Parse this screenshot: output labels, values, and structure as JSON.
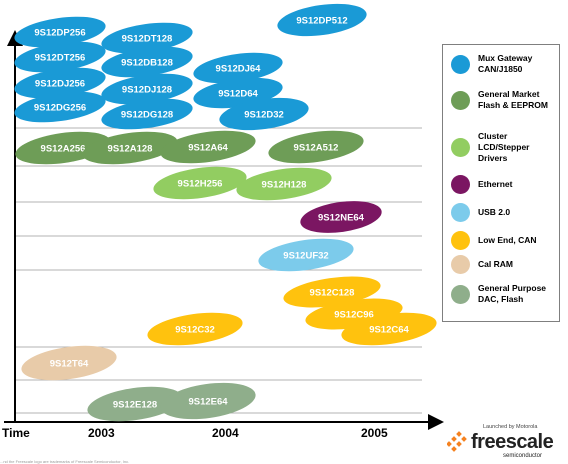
{
  "axis": {
    "time_label": "Time",
    "years": [
      {
        "label": "2003"
      },
      {
        "label": "2004"
      },
      {
        "label": "2005"
      }
    ]
  },
  "categories": [
    {
      "name": "Mux Gateway",
      "lines": [
        "Mux Gateway",
        "CAN/J1850"
      ],
      "color": "#1a9ad6"
    },
    {
      "name": "General Market",
      "lines": [
        "General Market",
        "Flash & EEPROM"
      ],
      "color": "#6e9d57"
    },
    {
      "name": "Cluster",
      "lines": [
        "Cluster",
        "LCD/Stepper",
        "Drivers"
      ],
      "color": "#92cd61"
    },
    {
      "name": "Ethernet",
      "lines": [
        "Ethernet"
      ],
      "color": "#7b1662"
    },
    {
      "name": "USB 2.0",
      "lines": [
        "USB 2.0"
      ],
      "color": "#7ccbeb"
    },
    {
      "name": "Low End, CAN",
      "lines": [
        "Low End, CAN"
      ],
      "color": "#ffc20e"
    },
    {
      "name": "Cal RAM",
      "lines": [
        "Cal RAM"
      ],
      "color": "#e8cba9"
    },
    {
      "name": "General Purpose",
      "lines": [
        "General Purpose",
        "DAC, Flash"
      ],
      "color": "#8fae8b"
    }
  ],
  "chips": [
    {
      "label": "9S12DP256",
      "category": 0
    },
    {
      "label": "9S12DT256",
      "category": 0
    },
    {
      "label": "9S12DJ256",
      "category": 0
    },
    {
      "label": "9S12DG256",
      "category": 0
    },
    {
      "label": "9S12DT128",
      "category": 0
    },
    {
      "label": "9S12DB128",
      "category": 0
    },
    {
      "label": "9S12DJ128",
      "category": 0
    },
    {
      "label": "9S12DG128",
      "category": 0
    },
    {
      "label": "9S12DJ64",
      "category": 0
    },
    {
      "label": "9S12D64",
      "category": 0
    },
    {
      "label": "9S12D32",
      "category": 0
    },
    {
      "label": "9S12DP512",
      "category": 0
    },
    {
      "label": "9S12A256",
      "category": 1
    },
    {
      "label": "9S12A128",
      "category": 1
    },
    {
      "label": "9S12A64",
      "category": 1
    },
    {
      "label": "9S12A512",
      "category": 1
    },
    {
      "label": "9S12H256",
      "category": 2
    },
    {
      "label": "9S12H128",
      "category": 2
    },
    {
      "label": "9S12NE64",
      "category": 3
    },
    {
      "label": "9S12UF32",
      "category": 4
    },
    {
      "label": "9S12C128",
      "category": 5
    },
    {
      "label": "9S12C96",
      "category": 5
    },
    {
      "label": "9S12C64",
      "category": 5
    },
    {
      "label": "9S12C32",
      "category": 5
    },
    {
      "label": "9S12T64",
      "category": 6
    },
    {
      "label": "9S12E128",
      "category": 7
    },
    {
      "label": "9S12E64",
      "category": 7
    }
  ],
  "logo": {
    "tagline": "Launched by Motorola",
    "wordmark": "freescale",
    "subtitle": "semiconductor"
  },
  "footnote": "...nd the Freescale logo are trademarks of Freescale Semiconductor, Inc."
}
